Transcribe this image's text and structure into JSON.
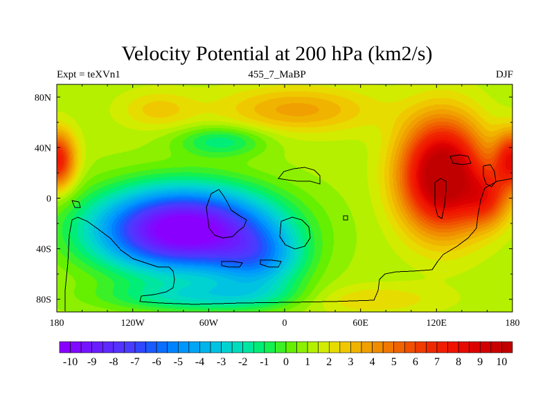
{
  "chart_data": {
    "type": "heatmap",
    "title": "Velocity Potential at 200 hPa (km2/s)",
    "subtitle_left": "Expt = teXVn1",
    "subtitle_center": "455_7_MaBP",
    "subtitle_right": "DJF",
    "x_ticks": [
      {
        "value": -180,
        "label": "180"
      },
      {
        "value": -120,
        "label": "120W"
      },
      {
        "value": -60,
        "label": "60W"
      },
      {
        "value": 0,
        "label": "0"
      },
      {
        "value": 60,
        "label": "60E"
      },
      {
        "value": 120,
        "label": "120E"
      },
      {
        "value": 180,
        "label": "180"
      }
    ],
    "y_ticks": [
      {
        "value": 80,
        "label": "80N"
      },
      {
        "value": 40,
        "label": "40N"
      },
      {
        "value": 0,
        "label": "0"
      },
      {
        "value": -40,
        "label": "40S"
      },
      {
        "value": -80,
        "label": "80S"
      }
    ],
    "xlim": [
      -180,
      180
    ],
    "ylim": [
      -90,
      90
    ],
    "colorbar": {
      "range": [
        -10,
        10
      ],
      "step": 0.5,
      "labels": [
        "-10",
        "-9",
        "-8",
        "-7",
        "-6",
        "-5",
        "-4",
        "-3",
        "-2",
        "-1",
        "0",
        "1",
        "2",
        "3",
        "4",
        "5",
        "6",
        "7",
        "8",
        "9",
        "10"
      ],
      "colors": [
        "#8a00ff",
        "#7f0aff",
        "#7414ff",
        "#6a1eff",
        "#5f28ff",
        "#5532ff",
        "#4a3cff",
        "#3046ff",
        "#1a5aff",
        "#0a6eff",
        "#0082ff",
        "#0096ff",
        "#00a5f5",
        "#00b4eb",
        "#00c3e1",
        "#00d2d2",
        "#00dcbe",
        "#00e6a0",
        "#00ee78",
        "#14f050",
        "#3cf028",
        "#64f000",
        "#8cf000",
        "#b4f000",
        "#d2ec00",
        "#e6dc00",
        "#f0c800",
        "#f0b400",
        "#f0a000",
        "#f08c00",
        "#f07800",
        "#f06400",
        "#f05000",
        "#f03c00",
        "#f02800",
        "#f01e00",
        "#f01400",
        "#e60a00",
        "#dc0000",
        "#d20000",
        "#c80000",
        "#c00000"
      ]
    },
    "field_features": [
      {
        "name": "central_pacific_minimum",
        "lon": -80,
        "lat": -25,
        "value": -10
      },
      {
        "name": "asian_maximum",
        "lon": 125,
        "lat": 15,
        "value": 10
      },
      {
        "name": "dateline_nh_maximum",
        "lon": -180,
        "lat": 30,
        "value": 8
      }
    ]
  }
}
